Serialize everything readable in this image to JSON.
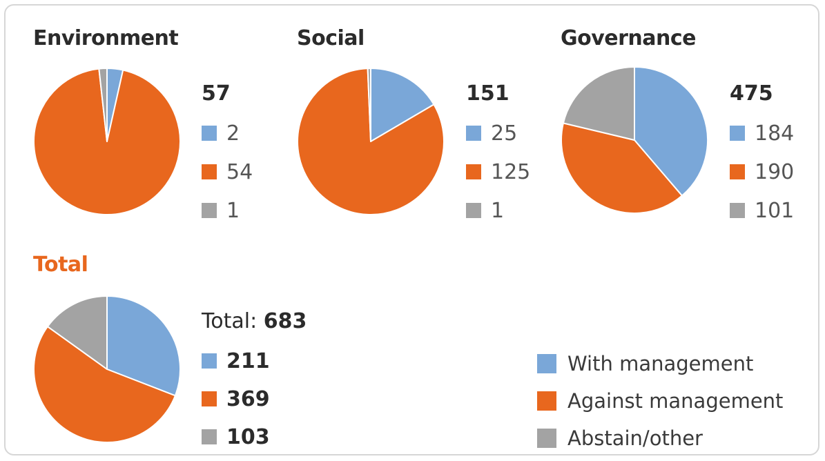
{
  "colors": {
    "with": "#7aa7d8",
    "against": "#e8671e",
    "abstain": "#a3a3a3"
  },
  "chart_data": [
    {
      "type": "pie",
      "title": "Environment",
      "total": "57",
      "categories": [
        "With management",
        "Against management",
        "Abstain/other"
      ],
      "values": [
        2,
        54,
        1
      ],
      "labels": [
        "2",
        "54",
        "1"
      ]
    },
    {
      "type": "pie",
      "title": "Social",
      "total": "151",
      "categories": [
        "With management",
        "Against management",
        "Abstain/other"
      ],
      "values": [
        25,
        125,
        1
      ],
      "labels": [
        "25",
        "125",
        "1"
      ]
    },
    {
      "type": "pie",
      "title": "Governance",
      "total": "475",
      "categories": [
        "With management",
        "Against management",
        "Abstain/other"
      ],
      "values": [
        184,
        190,
        101
      ],
      "labels": [
        "184",
        "190",
        "101"
      ]
    },
    {
      "type": "pie",
      "title": "Total",
      "total_prefix": "Total: ",
      "total": "683",
      "categories": [
        "With management",
        "Against management",
        "Abstain/other"
      ],
      "values": [
        211,
        369,
        103
      ],
      "labels": [
        "211",
        "369",
        "103"
      ]
    }
  ],
  "legend": [
    "With management",
    "Against management",
    "Abstain/other"
  ]
}
